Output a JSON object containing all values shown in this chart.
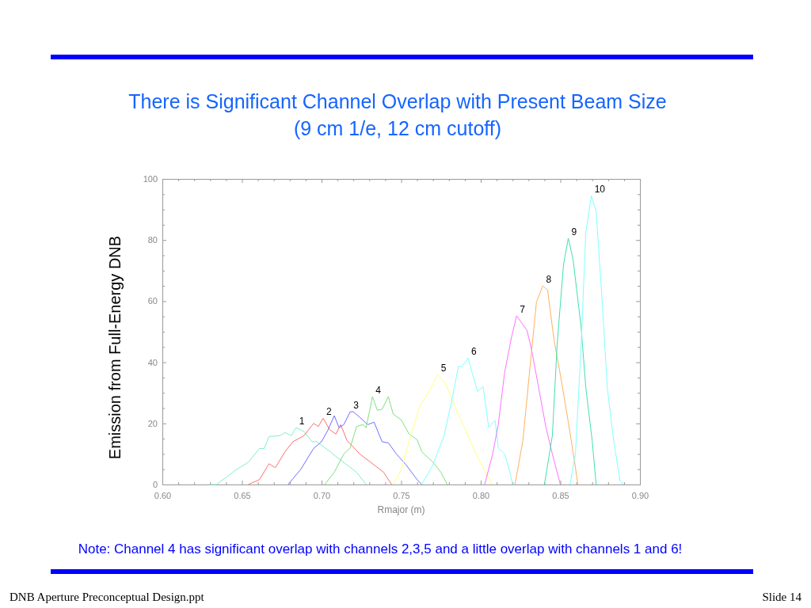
{
  "chart_data": {
    "type": "line",
    "title": "There is Significant Channel Overlap with Present Beam Size",
    "subtitle": "(9 cm 1/e, 12 cm cutoff)",
    "xlabel": "Rmajor (m)",
    "ylabel": "Emission from Full-Energy DNB",
    "annotations": [
      "Note:  Channel 4 has significant overlap with channels 2,3,5 and a little overlap with channels 1 and 6!",
      "DNB Aperture Preconceptual Design.ppt",
      "Slide 14"
    ],
    "xlim": [
      0.6,
      0.9
    ],
    "ylim": [
      0,
      100
    ],
    "xticks": [
      {
        "value": 0.6,
        "label": "0.60"
      },
      {
        "value": 0.61,
        "label": null
      },
      {
        "value": 0.62,
        "label": null
      },
      {
        "value": 0.63,
        "label": null
      },
      {
        "value": 0.64,
        "label": null
      },
      {
        "value": 0.65,
        "label": "0.65"
      },
      {
        "value": 0.66,
        "label": null
      },
      {
        "value": 0.67,
        "label": null
      },
      {
        "value": 0.68,
        "label": null
      },
      {
        "value": 0.69,
        "label": null
      },
      {
        "value": 0.7,
        "label": "0.70"
      },
      {
        "value": 0.71,
        "label": null
      },
      {
        "value": 0.72,
        "label": null
      },
      {
        "value": 0.73,
        "label": null
      },
      {
        "value": 0.74,
        "label": null
      },
      {
        "value": 0.75,
        "label": "0.75"
      },
      {
        "value": 0.76,
        "label": null
      },
      {
        "value": 0.77,
        "label": null
      },
      {
        "value": 0.78,
        "label": null
      },
      {
        "value": 0.79,
        "label": null
      },
      {
        "value": 0.8,
        "label": "0.80"
      },
      {
        "value": 0.81,
        "label": null
      },
      {
        "value": 0.82,
        "label": null
      },
      {
        "value": 0.83,
        "label": null
      },
      {
        "value": 0.84,
        "label": null
      },
      {
        "value": 0.85,
        "label": "0.85"
      },
      {
        "value": 0.86,
        "label": null
      },
      {
        "value": 0.87,
        "label": null
      },
      {
        "value": 0.88,
        "label": null
      },
      {
        "value": 0.89,
        "label": null
      },
      {
        "value": 0.9,
        "label": "0.90"
      }
    ],
    "yticks": [
      0,
      {
        "value": 5,
        "label": null
      },
      {
        "value": 10,
        "label": null
      },
      {
        "value": 15,
        "label": null
      },
      20,
      {
        "value": 25,
        "label": null
      },
      {
        "value": 30,
        "label": null
      },
      {
        "value": 35,
        "label": null
      },
      40,
      {
        "value": 45,
        "label": null
      },
      {
        "value": 50,
        "label": null
      },
      {
        "value": 55,
        "label": null
      },
      60,
      {
        "value": 65,
        "label": null
      },
      {
        "value": 70,
        "label": null
      },
      {
        "value": 75,
        "label": null
      },
      80,
      {
        "value": 85,
        "label": null
      },
      {
        "value": 90,
        "label": null
      },
      {
        "value": 95,
        "label": null
      },
      100
    ],
    "grid": false,
    "marker": "none",
    "line_style": "solid",
    "series": [
      {
        "name": "1",
        "color": "#80f0c0",
        "x": [
          0.63,
          0.634,
          0.646,
          0.654,
          0.661,
          0.664,
          0.667,
          0.674,
          0.677,
          0.681,
          0.684,
          0.689,
          0.694,
          0.697,
          0.706,
          0.707,
          0.722,
          0.728
        ],
        "values": [
          0,
          0,
          4.7,
          7.3,
          11.8,
          11.8,
          15.7,
          16,
          17,
          16,
          18.6,
          17.3,
          14,
          14,
          10.5,
          10,
          4,
          0
        ]
      },
      {
        "name": "2",
        "color": "#ff7070",
        "x": [
          0.654,
          0.661,
          0.667,
          0.671,
          0.677,
          0.682,
          0.689,
          0.695,
          0.698,
          0.701,
          0.705,
          0.709,
          0.712,
          0.716,
          0.724,
          0.734,
          0.739,
          0.744
        ],
        "values": [
          0,
          1.6,
          6.8,
          5.5,
          10.7,
          14,
          16,
          20,
          19,
          21.7,
          18,
          16.5,
          19.6,
          14.4,
          10,
          6,
          4,
          0
        ]
      },
      {
        "name": "3",
        "color": "#7070ff",
        "x": [
          0.679,
          0.687,
          0.695,
          0.7,
          0.704,
          0.708,
          0.711,
          0.714,
          0.718,
          0.72,
          0.724,
          0.729,
          0.733,
          0.738,
          0.742,
          0.747,
          0.753,
          0.76,
          0.763
        ],
        "values": [
          0,
          5,
          11.8,
          14,
          17.8,
          22.5,
          18.6,
          19.6,
          23.8,
          23.8,
          22,
          19.6,
          20.4,
          14,
          13.6,
          10,
          6.5,
          1.6,
          0
        ]
      },
      {
        "name": "4",
        "color": "#80e080",
        "x": [
          0.702,
          0.708,
          0.714,
          0.718,
          0.722,
          0.726,
          0.728,
          0.732,
          0.735,
          0.738,
          0.742,
          0.745,
          0.75,
          0.755,
          0.76,
          0.763,
          0.77,
          0.775,
          0.779
        ],
        "values": [
          0,
          4,
          10,
          12,
          19,
          19.6,
          18.6,
          28.8,
          24.3,
          24.6,
          28.8,
          23,
          21.2,
          16.5,
          14.7,
          10.7,
          7.3,
          4,
          0
        ]
      },
      {
        "name": "5",
        "color": "#ffff80",
        "x": [
          0.745,
          0.75,
          0.756,
          0.762,
          0.767,
          0.773,
          0.778,
          0.785,
          0.792,
          0.798,
          0.805,
          0.8075
        ],
        "values": [
          0,
          4.7,
          16,
          26,
          30,
          36,
          33,
          24,
          16,
          9,
          2,
          0
        ]
      },
      {
        "name": "6",
        "color": "#80ffff",
        "x": [
          0.763,
          0.77,
          0.777,
          0.782,
          0.786,
          0.788,
          0.792,
          0.798,
          0.8015,
          0.805,
          0.809,
          0.811,
          0.815,
          0.818,
          0.82
        ],
        "values": [
          0,
          6.5,
          16,
          28,
          38.7,
          38.5,
          41.4,
          30.4,
          32,
          18.6,
          21,
          12,
          10,
          4.7,
          0
        ]
      },
      {
        "name": "7",
        "color": "#ff70ff",
        "x": [
          0.8025,
          0.8075,
          0.811,
          0.815,
          0.819,
          0.8225,
          0.829,
          0.832,
          0.836,
          0.841,
          0.845,
          0.85
        ],
        "values": [
          0,
          10,
          19.6,
          36.6,
          47.4,
          55.2,
          50.5,
          44,
          32.7,
          18.6,
          10,
          0
        ]
      },
      {
        "name": "8",
        "color": "#ffb060",
        "x": [
          0.8215,
          0.8265,
          0.831,
          0.835,
          0.839,
          0.842,
          0.846,
          0.85,
          0.855,
          0.859,
          0.861
        ],
        "values": [
          0,
          14.4,
          38.7,
          59.7,
          65,
          63.6,
          47.4,
          36,
          20.4,
          7.3,
          0
        ]
      },
      {
        "name": "9",
        "color": "#40e0b0",
        "x": [
          0.84,
          0.845,
          0.848,
          0.852,
          0.855,
          0.858,
          0.863,
          0.866,
          0.87,
          0.8725
        ],
        "values": [
          0,
          16,
          45.8,
          72,
          80.6,
          73.6,
          51.8,
          31.7,
          14.4,
          0
        ]
      },
      {
        "name": "10",
        "color": "#80ffff",
        "x": [
          0.856,
          0.8595,
          0.863,
          0.866,
          0.8695,
          0.8725,
          0.876,
          0.8795,
          0.8835,
          0.8875,
          0.8895
        ],
        "values": [
          0,
          10,
          44.8,
          82.5,
          94.5,
          89.3,
          62.3,
          31.7,
          14.4,
          1.3,
          0
        ]
      }
    ]
  }
}
